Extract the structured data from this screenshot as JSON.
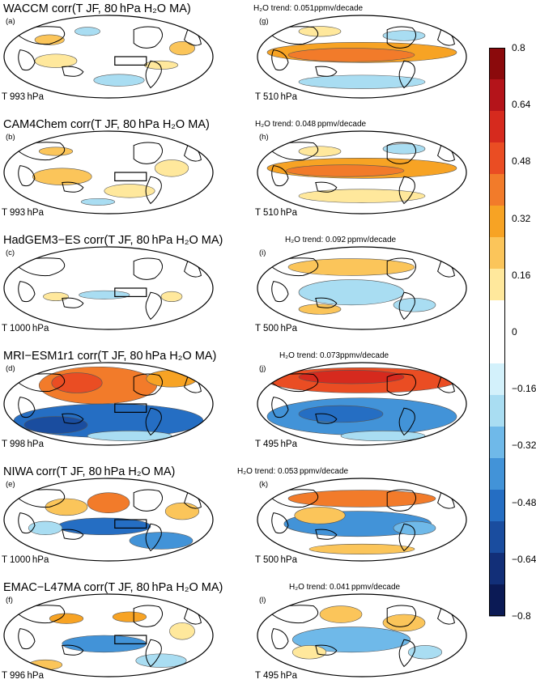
{
  "panels": [
    {
      "title": "WACCM corr(T JF, 80 hPa H₂O MA)",
      "left_label": "(a)",
      "left_level": "T 993 hPa",
      "right_label": "(g)",
      "right_level": "T 510 hPa",
      "trend": "H₂O trend: 0.051ppmv/decade"
    },
    {
      "title": "CAM4Chem corr(T JF, 80 hPa H₂O MA)",
      "left_label": "(b)",
      "left_level": "T 993 hPa",
      "right_label": "(h)",
      "right_level": "T 510 hPa",
      "trend": "H₂O trend: 0.048 ppmv/decade"
    },
    {
      "title": "HadGEM3−ES corr(T JF, 80 hPa H₂O MA)",
      "left_label": "(c)",
      "left_level": "T 1000 hPa",
      "right_label": "(i)",
      "right_level": "T 500 hPa",
      "trend": "H₂O trend: 0.092 ppmv/decade"
    },
    {
      "title": "MRI−ESM1r1 corr(T JF, 80 hPa H₂O MA)",
      "left_label": "(d)",
      "left_level": "T 998 hPa",
      "right_label": "(j)",
      "right_level": "T 495 hPa",
      "trend": "H₂O trend: 0.073ppmv/decade"
    },
    {
      "title": "NIWA corr(T JF, 80 hPa H₂O MA)",
      "left_label": "(e)",
      "left_level": "T 1000 hPa",
      "right_label": "(k)",
      "right_level": "T 500 hPa",
      "trend": "H₂O trend: 0.053 ppmv/decade"
    },
    {
      "title": "EMAC−L47MA corr(T JF, 80 hPa H₂O MA)",
      "left_label": "(f)",
      "left_level": "T 996 hPa",
      "right_label": "(l)",
      "right_level": "T 495 hPa",
      "trend": "H₂O trend: 0.041 ppmv/decade"
    }
  ],
  "colorbar": {
    "ticks": [
      "0.8",
      "0.64",
      "0.48",
      "0.32",
      "0.16",
      "0",
      "−0.16",
      "−0.32",
      "−0.48",
      "−0.64",
      "−0.8"
    ],
    "colors": [
      "#8b0a0c",
      "#b4141a",
      "#d62a1e",
      "#ea4d23",
      "#f27b2a",
      "#f7a324",
      "#fbc55a",
      "#ffe89c",
      "#ffffff",
      "#ffffff",
      "#d3f1fb",
      "#a9ddf2",
      "#6fb9e9",
      "#4293d8",
      "#256ec3",
      "#1a4d9f",
      "#122f78",
      "#0b1a55"
    ]
  },
  "colors": {
    "land_outline": "#000000",
    "contour": "#555555"
  }
}
